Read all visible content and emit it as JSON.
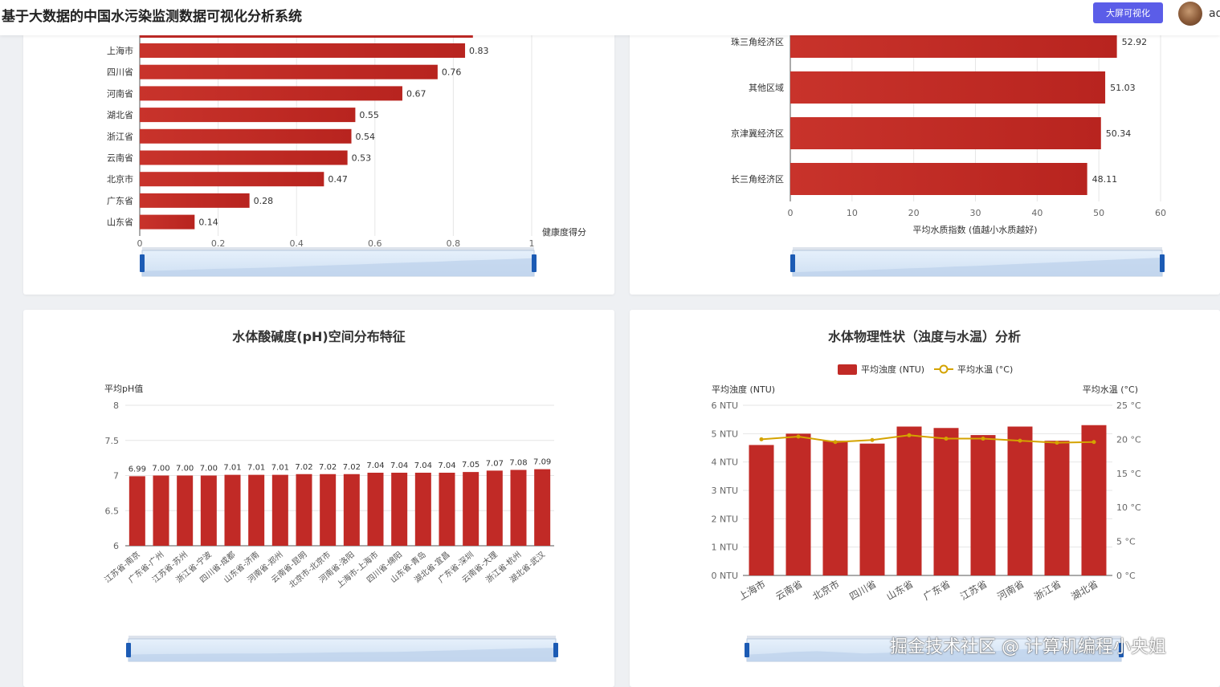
{
  "header": {
    "title": "基于大数据的中国水污染监测数据可视化分析系统",
    "bigscreen_label": "大屏可视化",
    "username": "ad"
  },
  "colors": {
    "bar": "#c12a26",
    "line": "#d4a300",
    "accent": "#5b5de8"
  },
  "charts": {
    "health": {
      "type": "bar-horizontal",
      "categories": [
        "上海市",
        "四川省",
        "河南省",
        "湖北省",
        "浙江省",
        "云南省",
        "北京市",
        "广东省",
        "山东省"
      ],
      "values": [
        0.83,
        0.76,
        0.67,
        0.55,
        0.54,
        0.53,
        0.47,
        0.28,
        0.14
      ],
      "value_labels": [
        "0.83",
        "0.76",
        "0.67",
        "0.55",
        "0.54",
        "0.53",
        "0.47",
        "0.28",
        "0.14"
      ],
      "partial_top_value": 0.85,
      "xlim": [
        0,
        1
      ],
      "x_ticks": [
        "0",
        "0.2",
        "0.4",
        "0.6",
        "0.8",
        "1"
      ],
      "xlabel": "健康度得分"
    },
    "region": {
      "type": "bar-horizontal",
      "categories": [
        "珠三角经济区",
        "其他区域",
        "京津冀经济区",
        "长三角经济区"
      ],
      "values": [
        52.92,
        51.03,
        50.34,
        48.11
      ],
      "value_labels": [
        "52.92",
        "51.03",
        "50.34",
        "48.11"
      ],
      "xlim": [
        0,
        60
      ],
      "x_ticks": [
        "0",
        "10",
        "20",
        "30",
        "40",
        "50",
        "60"
      ],
      "xlabel": "平均水质指数 (值越小水质越好)"
    },
    "ph": {
      "type": "bar",
      "title": "水体酸碱度(pH)空间分布特征",
      "ylabel": "平均pH值",
      "ylim": [
        6,
        8
      ],
      "y_ticks": [
        "6",
        "6.5",
        "7",
        "7.5",
        "8"
      ],
      "categories": [
        "江苏省-南京",
        "广东省-广州",
        "江苏省-苏州",
        "浙江省-宁波",
        "四川省-成都",
        "山东省-济南",
        "河南省-郑州",
        "云南省-昆明",
        "北京市-北京市",
        "河南省-洛阳",
        "上海市-上海市",
        "四川省-绵阳",
        "山东省-青岛",
        "湖北省-宜昌",
        "广东省-深圳",
        "云南省-大理",
        "浙江省-杭州",
        "湖北省-武汉"
      ],
      "values": [
        6.99,
        7.0,
        7.0,
        7.0,
        7.01,
        7.01,
        7.01,
        7.02,
        7.02,
        7.02,
        7.04,
        7.04,
        7.04,
        7.04,
        7.05,
        7.07,
        7.08,
        7.09
      ],
      "value_labels": [
        "6.99",
        "7.00",
        "7.00",
        "7.00",
        "7.01",
        "7.01",
        "7.01",
        "7.02",
        "7.02",
        "7.02",
        "7.04",
        "7.04",
        "7.04",
        "7.04",
        "7.05",
        "7.07",
        "7.08",
        "7.09"
      ]
    },
    "physical": {
      "type": "bar+line",
      "title": "水体物理性状（浊度与水温）分析",
      "legend": [
        "平均浊度 (NTU)",
        "平均水温 (°C)"
      ],
      "ylabel_left": "平均浊度 (NTU)",
      "ylabel_right": "平均水温 (°C)",
      "ylim_left": [
        0,
        6
      ],
      "ylim_right": [
        0,
        25
      ],
      "y_ticks_left": [
        "0 NTU",
        "1 NTU",
        "2 NTU",
        "3 NTU",
        "4 NTU",
        "5 NTU",
        "6 NTU"
      ],
      "y_ticks_right": [
        "0 °C",
        "5 °C",
        "10 °C",
        "15 °C",
        "20 °C",
        "25 °C"
      ],
      "categories": [
        "上海市",
        "云南省",
        "北京市",
        "四川省",
        "山东省",
        "广东省",
        "江苏省",
        "河南省",
        "浙江省",
        "湖北省"
      ],
      "turbidity": [
        4.6,
        5.0,
        4.75,
        4.65,
        5.25,
        5.2,
        4.95,
        5.25,
        4.75,
        5.3
      ],
      "temperature": [
        20.0,
        20.4,
        19.6,
        19.9,
        20.6,
        20.1,
        20.1,
        19.8,
        19.5,
        19.6
      ]
    }
  },
  "watermark": "掘金技术社区 @ 计算机编程小央姐"
}
